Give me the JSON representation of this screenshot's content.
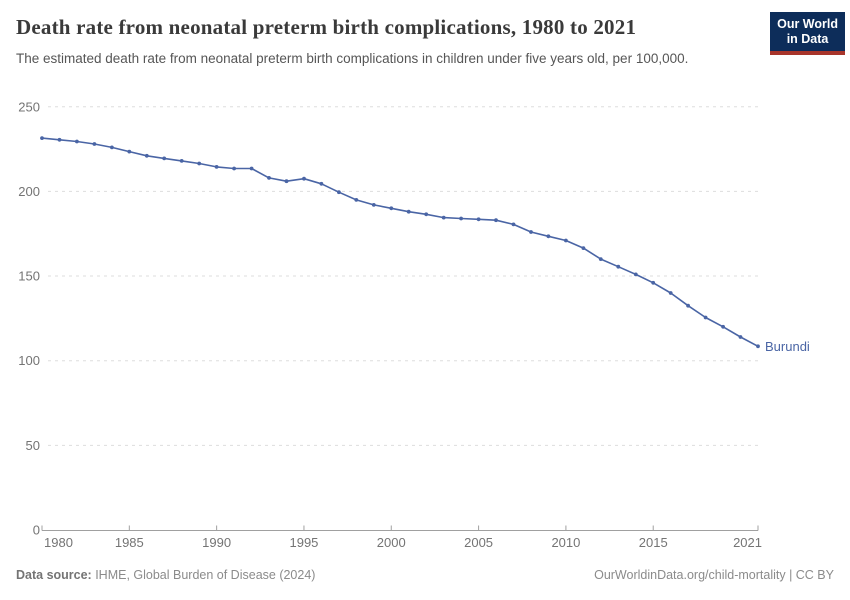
{
  "header": {
    "title": "Death rate from neonatal preterm birth complications, 1980 to 2021",
    "subtitle": "The estimated death rate from neonatal preterm birth complications in children under five years old, per 100,000.",
    "logo": {
      "line1": "Our World",
      "line2": "in Data"
    }
  },
  "chart_data": {
    "type": "line",
    "title": "Death rate from neonatal preterm birth complications, 1980 to 2021",
    "xlabel": "",
    "ylabel": "",
    "xlim": [
      1980,
      2021
    ],
    "ylim": [
      0,
      250
    ],
    "x_ticks": [
      1980,
      1985,
      1990,
      1995,
      2000,
      2005,
      2010,
      2015,
      2021
    ],
    "y_ticks": [
      0,
      50,
      100,
      150,
      200,
      250
    ],
    "grid": "horizontal-dashed",
    "legend_position": "end-of-line-label",
    "x": [
      1980,
      1981,
      1982,
      1983,
      1984,
      1985,
      1986,
      1987,
      1988,
      1989,
      1990,
      1991,
      1992,
      1993,
      1994,
      1995,
      1996,
      1997,
      1998,
      1999,
      2000,
      2001,
      2002,
      2003,
      2004,
      2005,
      2006,
      2007,
      2008,
      2009,
      2010,
      2011,
      2012,
      2013,
      2014,
      2015,
      2016,
      2017,
      2018,
      2019,
      2020,
      2021
    ],
    "series": [
      {
        "name": "Burundi",
        "color": "#4a65a5",
        "values": [
          231.5,
          230.5,
          229.5,
          228,
          226,
          223.5,
          221,
          219.5,
          218,
          216.5,
          214.5,
          213.5,
          213.5,
          208,
          206,
          207.5,
          204.5,
          199.5,
          195,
          192,
          190,
          188,
          186.5,
          184.5,
          184,
          183.5,
          183,
          180.5,
          176,
          173.5,
          171,
          166.5,
          160,
          155.5,
          151,
          146,
          140,
          132.5,
          125.5,
          120,
          114,
          108.5
        ]
      }
    ]
  },
  "colors": {
    "line": "#4a65a5",
    "grid": "#dddddd",
    "axis": "#a0a0a0",
    "tick_text": "#747474",
    "logo_bg": "#0d2d5a",
    "logo_stripe": "#a8352b"
  },
  "footer": {
    "source_label": "Data source:",
    "source_text": " IHME, Global Burden of Disease (2024)",
    "credit": "OurWorldinData.org/child-mortality | CC BY"
  }
}
